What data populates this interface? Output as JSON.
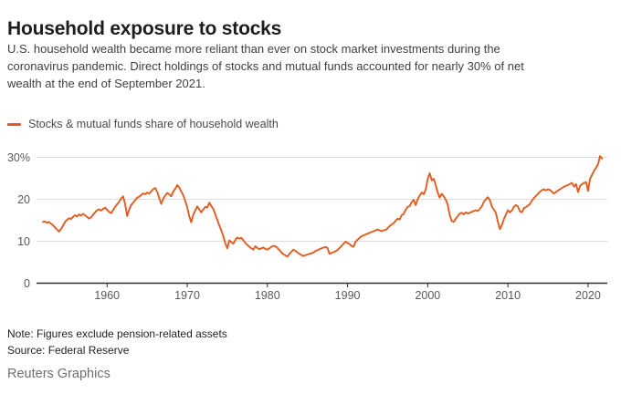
{
  "header": {
    "title": "Household exposure to stocks",
    "description_lines": [
      "U.S. household wealth became more reliant than ever on stock market investments during the",
      "coronavirus pandemic. Direct holdings of stocks and mutual funds accounted for nearly 30% of net",
      "wealth at the end of September 2021."
    ]
  },
  "legend": {
    "series_label": "Stocks & mutual funds share of household wealth",
    "swatch_color": "#e55b1e"
  },
  "footer": {
    "note": "Note: Figures exclude pension-related assets",
    "source": "Source: Federal Reserve",
    "credit": "Reuters Graphics"
  },
  "chart_data": {
    "type": "line",
    "series_name": "Stocks & mutual funds share of household wealth",
    "unit": "% of household net worth",
    "line_color": "#e55b1e",
    "grid": "horizontal",
    "legend_position": "top-left",
    "xlim": [
      1951.2,
      2022.4
    ],
    "ylim": [
      0,
      30
    ],
    "x_ticks": [
      1960,
      1970,
      1980,
      1990,
      2000,
      2010,
      2020
    ],
    "y_ticks": [
      {
        "value": 0,
        "label": "0"
      },
      {
        "value": 10,
        "label": "10"
      },
      {
        "value": 20,
        "label": "20"
      },
      {
        "value": 30,
        "label": "30%"
      }
    ],
    "x_start_year": 1952.0,
    "x_step_years": 0.25,
    "x_end_year": 2021.75,
    "values": [
      14.6,
      14.7,
      14.4,
      14.6,
      14.2,
      13.8,
      13.3,
      12.8,
      12.3,
      12.9,
      13.7,
      14.6,
      15.1,
      15.5,
      15.3,
      15.8,
      16.2,
      15.9,
      16.4,
      16.1,
      16.5,
      16.2,
      15.8,
      15.4,
      15.7,
      16.3,
      16.9,
      17.4,
      17.6,
      17.3,
      17.7,
      18.0,
      17.5,
      17.0,
      16.7,
      17.4,
      18.2,
      18.8,
      19.4,
      20.2,
      20.7,
      18.9,
      16.0,
      17.5,
      18.6,
      19.2,
      19.8,
      20.4,
      20.6,
      21.0,
      21.4,
      21.2,
      21.6,
      21.3,
      21.9,
      22.4,
      22.7,
      21.8,
      20.3,
      18.9,
      20.1,
      20.9,
      21.5,
      21.2,
      20.7,
      21.8,
      22.5,
      23.4,
      22.8,
      21.9,
      21.0,
      19.6,
      18.1,
      16.0,
      14.5,
      16.3,
      17.3,
      18.3,
      17.6,
      16.9,
      17.6,
      18.2,
      18.0,
      19.2,
      18.4,
      17.7,
      16.4,
      15.1,
      13.8,
      12.6,
      11.2,
      9.5,
      8.3,
      10.2,
      9.8,
      9.4,
      10.3,
      10.9,
      10.6,
      10.8,
      10.2,
      9.6,
      9.1,
      8.7,
      8.3,
      8.0,
      8.8,
      8.4,
      8.1,
      8.3,
      8.5,
      8.2,
      8.0,
      8.3,
      8.7,
      8.9,
      8.8,
      8.4,
      7.9,
      7.3,
      6.9,
      6.6,
      6.3,
      7.0,
      7.5,
      8.0,
      7.7,
      7.3,
      7.0,
      6.7,
      6.5,
      6.7,
      6.8,
      7.0,
      7.1,
      7.3,
      7.7,
      7.9,
      8.1,
      8.3,
      8.5,
      8.6,
      8.4,
      7.0,
      7.2,
      7.4,
      7.6,
      7.9,
      8.4,
      8.9,
      9.4,
      9.9,
      9.6,
      9.3,
      8.9,
      8.7,
      9.9,
      10.4,
      10.8,
      11.2,
      11.4,
      11.6,
      11.8,
      12.0,
      12.2,
      12.4,
      12.6,
      12.8,
      12.6,
      12.4,
      12.6,
      12.7,
      13.1,
      13.6,
      14.0,
      14.3,
      14.9,
      15.4,
      15.2,
      16.2,
      16.5,
      17.5,
      18.2,
      18.4,
      19.3,
      19.9,
      18.6,
      20.0,
      20.9,
      21.6,
      21.2,
      22.4,
      24.9,
      26.2,
      24.5,
      24.9,
      23.4,
      21.6,
      20.4,
      21.3,
      20.7,
      19.9,
      18.7,
      16.2,
      14.8,
      14.6,
      15.4,
      16.0,
      16.6,
      16.8,
      16.4,
      16.9,
      16.6,
      16.8,
      17.0,
      17.2,
      17.4,
      17.2,
      17.7,
      18.3,
      19.4,
      20.0,
      20.5,
      19.8,
      18.3,
      17.5,
      16.8,
      14.6,
      12.9,
      13.9,
      15.3,
      16.4,
      17.4,
      16.9,
      17.3,
      18.2,
      18.6,
      18.3,
      17.1,
      16.9,
      17.9,
      18.1,
      18.5,
      18.9,
      19.7,
      20.3,
      20.8,
      21.3,
      21.8,
      22.2,
      22.4,
      22.1,
      22.4,
      22.2,
      21.8,
      21.4,
      21.7,
      22.1,
      22.4,
      22.7,
      23.0,
      23.2,
      23.4,
      23.7,
      23.9,
      23.0,
      23.6,
      21.7,
      23.2,
      23.6,
      23.9,
      24.1,
      22.0,
      24.9,
      25.8,
      26.8,
      27.5,
      28.4,
      30.3,
      29.7
    ]
  }
}
